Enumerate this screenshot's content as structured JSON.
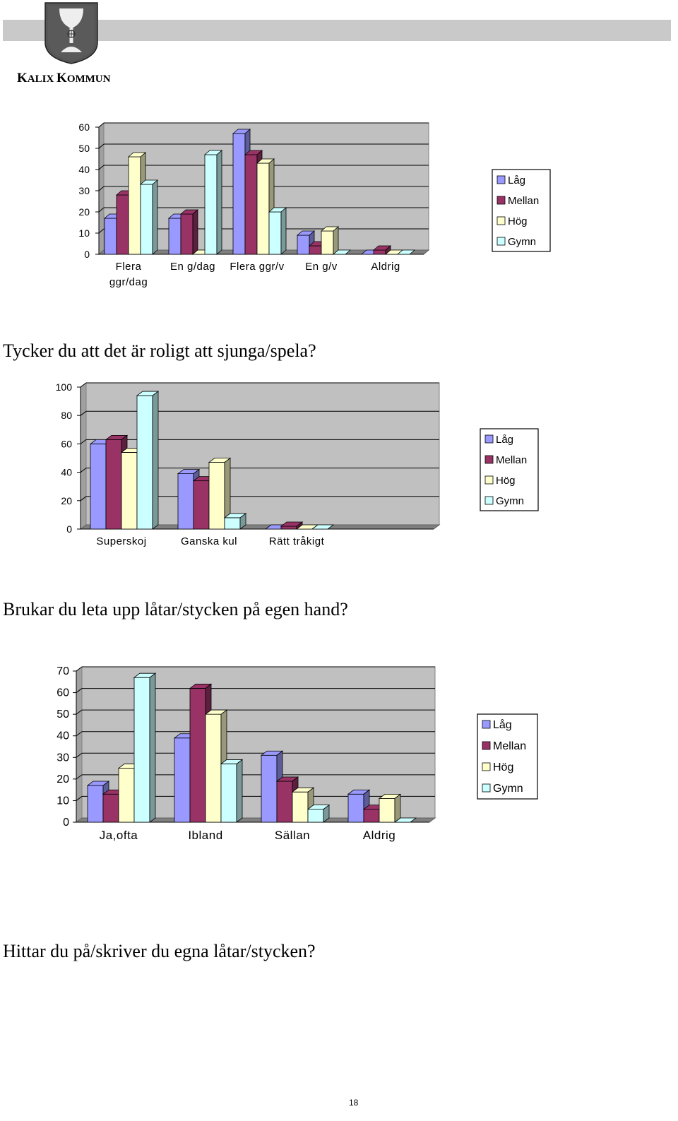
{
  "header": {
    "org_name_initial_1": "K",
    "org_name_rest_1": "ALIX ",
    "org_name_initial_2": "K",
    "org_name_rest_2": "OMMUN",
    "logo_icon": "coat-of-arms-chalice-icon"
  },
  "questions": {
    "q1": "Tycker du att det är roligt att sjunga/spela?",
    "q2": "Brukar du leta upp låtar/stycken på egen hand?",
    "q3": "Hittar du på/skriver du egna låtar/stycken?"
  },
  "page_number": "18",
  "colors": {
    "Låg": "#9999ff",
    "Mellan": "#993366",
    "Hög": "#ffffcc",
    "Gymn": "#ccffff",
    "plot_background": "#c0c0c0",
    "floor": "#808080"
  },
  "chart_data": [
    {
      "type": "bar",
      "subtype": "3d-clustered",
      "categories": [
        "Flera ggr/dag",
        "En g/dag",
        "Flera ggr/v",
        "En g/v",
        "Aldrig"
      ],
      "series": [
        {
          "name": "Låg",
          "values": [
            17,
            17,
            57,
            9,
            0
          ]
        },
        {
          "name": "Mellan",
          "values": [
            28,
            19,
            47,
            4,
            2
          ]
        },
        {
          "name": "Hög",
          "values": [
            46,
            0,
            43,
            11,
            0
          ]
        },
        {
          "name": "Gymn",
          "values": [
            33,
            47,
            20,
            0,
            0
          ]
        }
      ],
      "yticks": [
        "0",
        "10",
        "20",
        "30",
        "40",
        "50",
        "60"
      ],
      "ylim": [
        0,
        60
      ],
      "grid": true,
      "legend": "right"
    },
    {
      "type": "bar",
      "subtype": "3d-clustered",
      "categories": [
        "Superskoj",
        "Ganska kul",
        "Rätt tråkigt"
      ],
      "series": [
        {
          "name": "Låg",
          "values": [
            60,
            39,
            0
          ]
        },
        {
          "name": "Mellan",
          "values": [
            63,
            34,
            2
          ]
        },
        {
          "name": "Hög",
          "values": [
            54,
            47,
            0
          ]
        },
        {
          "name": "Gymn",
          "values": [
            94,
            8,
            0
          ]
        }
      ],
      "yticks": [
        "0",
        "20",
        "40",
        "60",
        "80",
        "100"
      ],
      "ylim": [
        0,
        100
      ],
      "grid": true,
      "legend": "right"
    },
    {
      "type": "bar",
      "subtype": "3d-clustered",
      "categories": [
        "Ja,ofta",
        "Ibland",
        "Sällan",
        "Aldrig"
      ],
      "series": [
        {
          "name": "Låg",
          "values": [
            17,
            39,
            31,
            13
          ]
        },
        {
          "name": "Mellan",
          "values": [
            13,
            62,
            19,
            6
          ]
        },
        {
          "name": "Hög",
          "values": [
            25,
            50,
            14,
            11
          ]
        },
        {
          "name": "Gymn",
          "values": [
            67,
            27,
            6,
            0
          ]
        }
      ],
      "yticks": [
        "0",
        "10",
        "20",
        "30",
        "40",
        "50",
        "60",
        "70"
      ],
      "ylim": [
        0,
        70
      ],
      "grid": true,
      "legend": "right"
    }
  ]
}
